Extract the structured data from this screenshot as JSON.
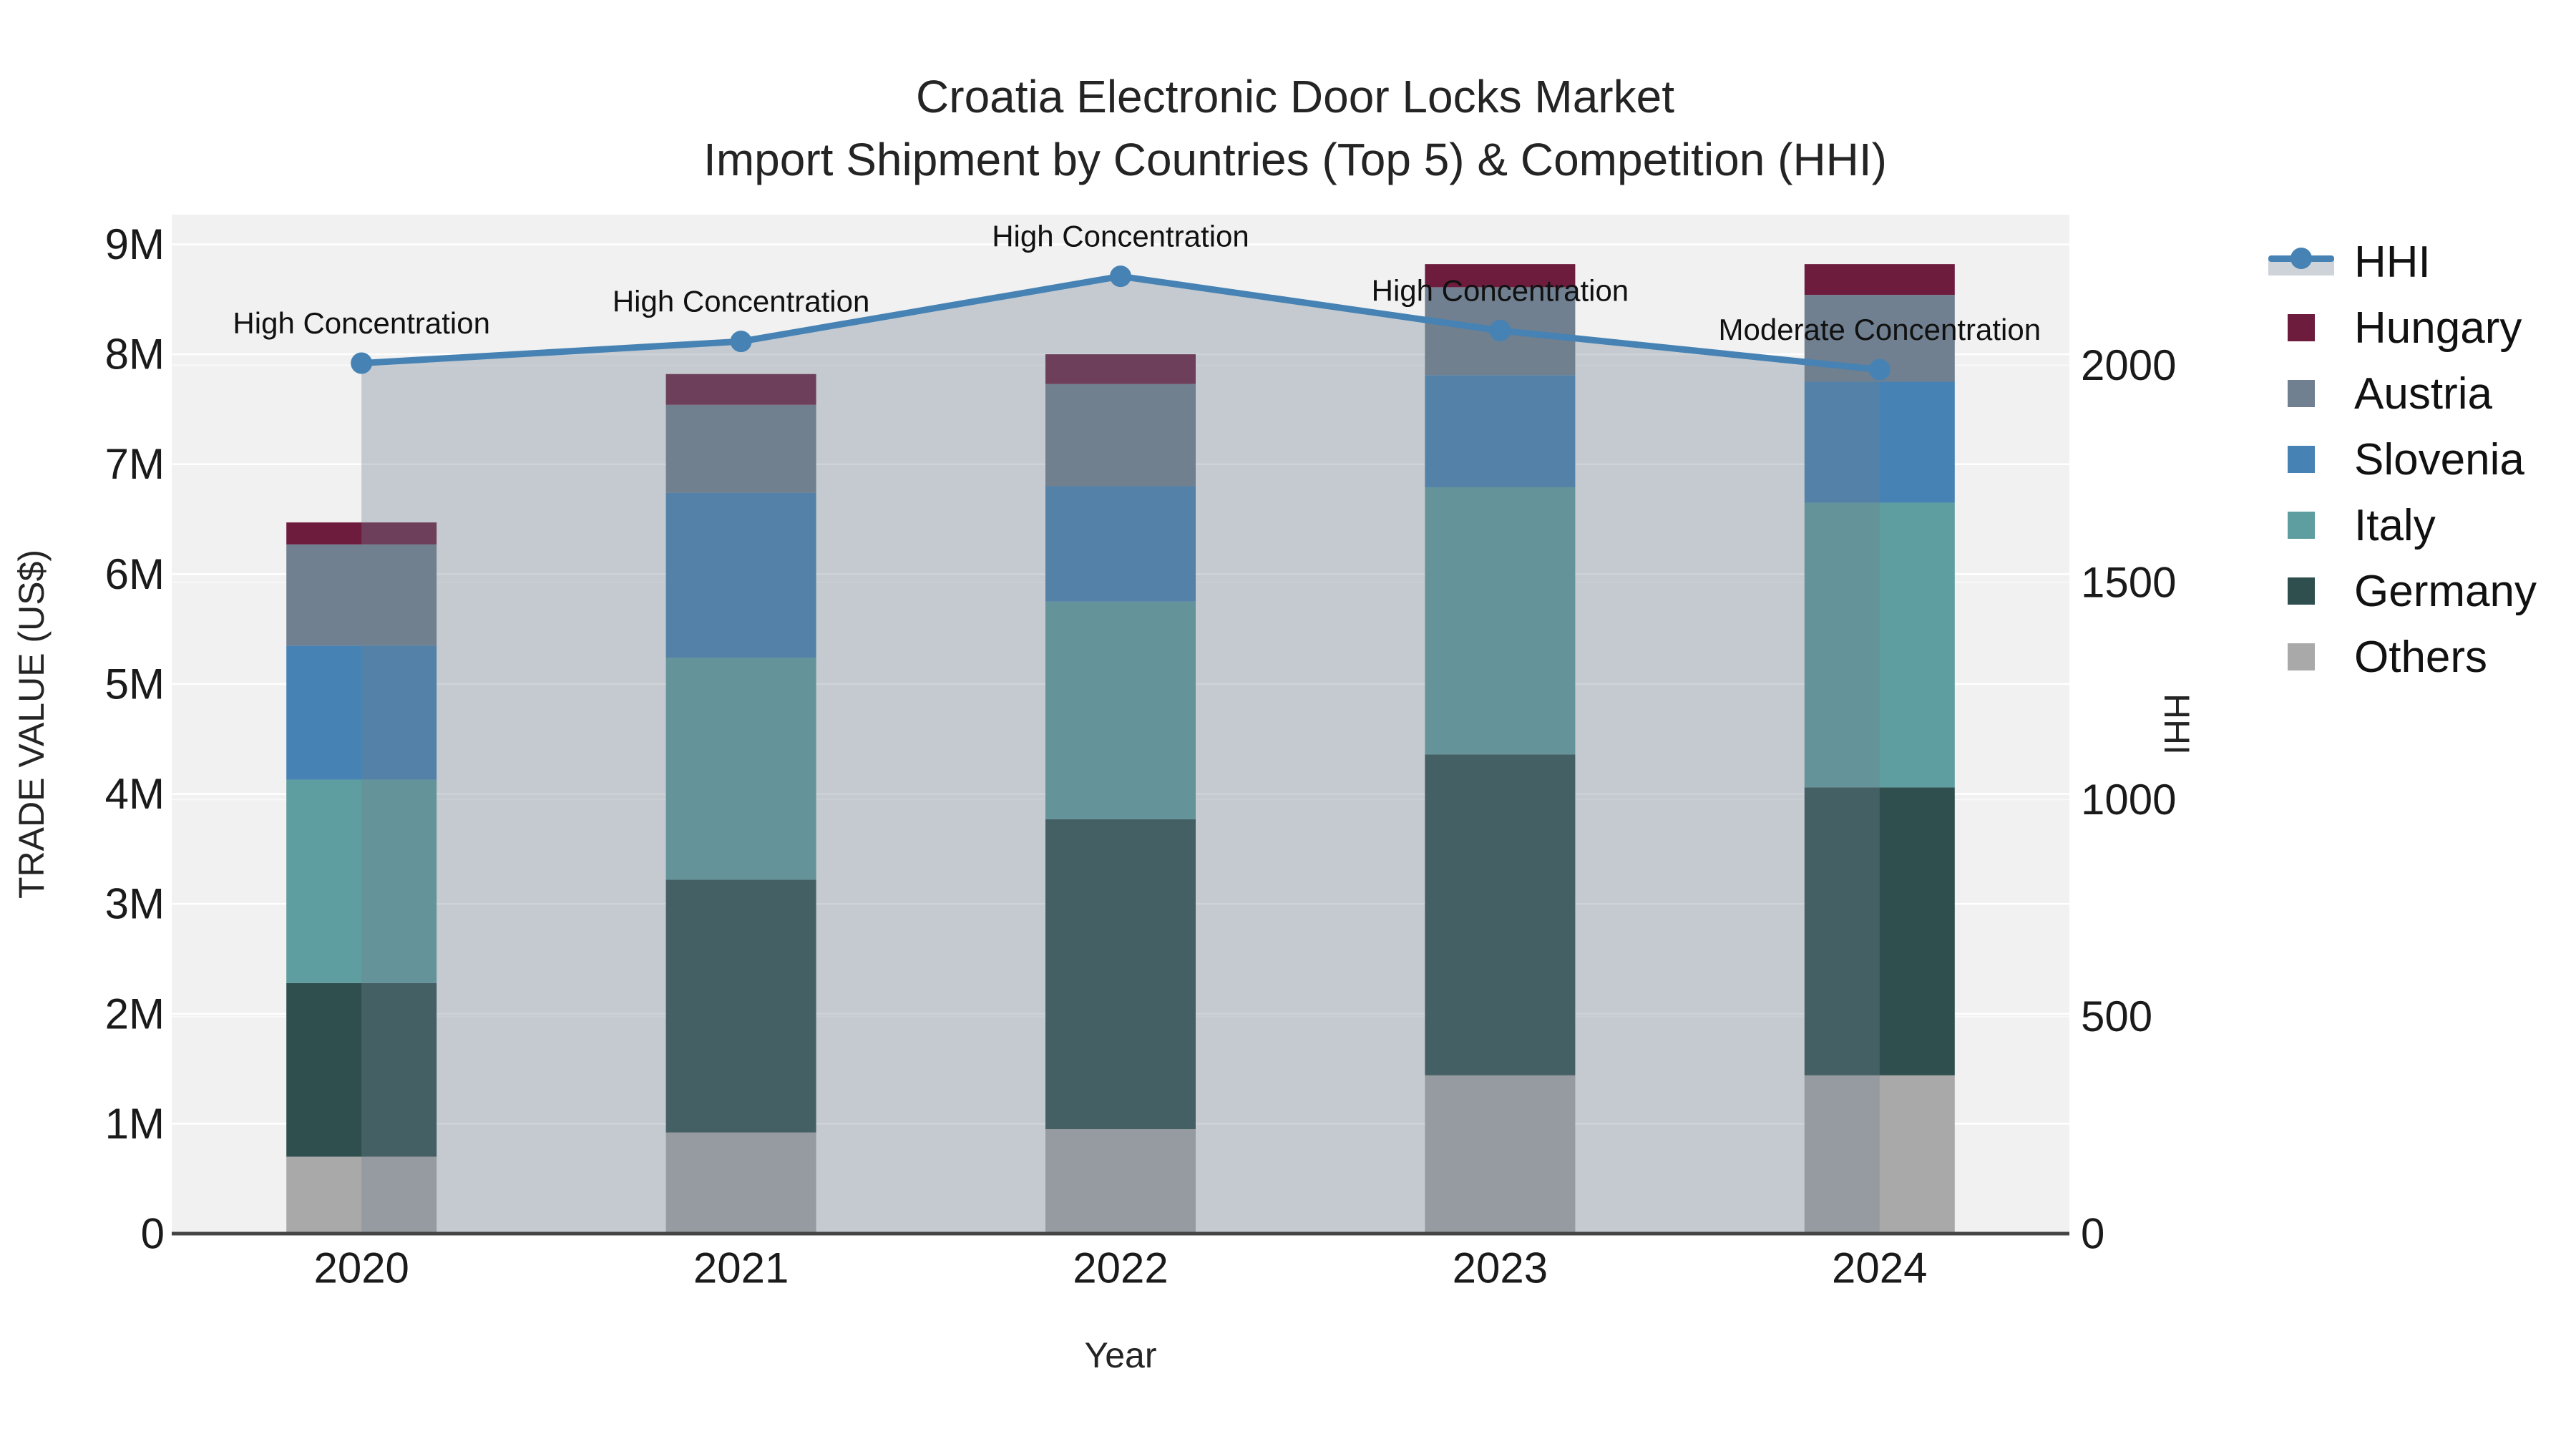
{
  "title": {
    "line1": "Croatia Electronic Door Locks Market",
    "line2": "Import Shipment by Countries (Top 5) & Competition (HHI)"
  },
  "chart_data": {
    "type": "bar",
    "subtype": "stacked-bars-with-hhi-line-area",
    "title": "Croatia Electronic Door Locks Market — Import Shipment by Countries (Top 5) & Competition (HHI)",
    "categories": [
      "2020",
      "2021",
      "2022",
      "2023",
      "2024"
    ],
    "unit": "US$ millions",
    "series": [
      {
        "name": "Others",
        "color": "#A9A9A9",
        "values": [
          0.7,
          0.92,
          0.95,
          1.44,
          1.44
        ]
      },
      {
        "name": "Germany",
        "color": "#2F4F4F",
        "values": [
          1.58,
          2.3,
          2.82,
          2.92,
          2.62
        ]
      },
      {
        "name": "Italy",
        "color": "#5F9EA0",
        "values": [
          1.85,
          2.02,
          1.98,
          2.43,
          2.59
        ]
      },
      {
        "name": "Slovenia",
        "color": "#4682B4",
        "values": [
          1.22,
          1.5,
          1.05,
          1.02,
          1.1
        ]
      },
      {
        "name": "Austria",
        "color": "#708090",
        "values": [
          0.92,
          0.8,
          0.93,
          0.8,
          0.79
        ]
      },
      {
        "name": "Hungary",
        "color": "#6E1C3E",
        "values": [
          0.2,
          0.28,
          0.27,
          0.21,
          0.28
        ]
      }
    ],
    "stack_totals": [
      6.47,
      7.82,
      8.0,
      8.82,
      8.82
    ],
    "line_series": {
      "name": "HHI",
      "color": "#4682B4",
      "fill_color": "rgba(112,128,144,0.35)",
      "values": [
        2005,
        2055,
        2205,
        2080,
        1990
      ]
    },
    "annotations": [
      {
        "category": "2020",
        "text": "High Concentration"
      },
      {
        "category": "2021",
        "text": "High Concentration"
      },
      {
        "category": "2022",
        "text": "High Concentration"
      },
      {
        "category": "2023",
        "text": "High Concentration"
      },
      {
        "category": "2024",
        "text": "Moderate Concentration"
      }
    ],
    "axes": {
      "x": {
        "title": "Year"
      },
      "y_left": {
        "title": "TRADE VALUE (US$)",
        "ticks": [
          "0",
          "1M",
          "2M",
          "3M",
          "4M",
          "5M",
          "6M",
          "7M",
          "8M",
          "9M"
        ],
        "tick_values": [
          0,
          1,
          2,
          3,
          4,
          5,
          6,
          7,
          8,
          9
        ],
        "max": 9.27
      },
      "y_right": {
        "title": "HHI",
        "ticks": [
          "0",
          "500",
          "1000",
          "1500",
          "2000"
        ],
        "tick_values": [
          0,
          500,
          1000,
          1500,
          2000
        ],
        "max": 2347
      }
    },
    "legend_order": [
      "HHI",
      "Hungary",
      "Austria",
      "Slovenia",
      "Italy",
      "Germany",
      "Others"
    ],
    "legend_position": "right",
    "grid": true,
    "plot_bg": "#F1F1F1",
    "axis_line_color": "#444444"
  }
}
